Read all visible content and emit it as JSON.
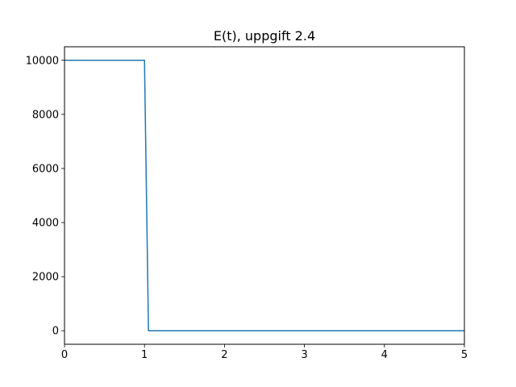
{
  "chart_data": {
    "type": "line",
    "title": "E(t), uppgift 2.4",
    "xlabel": "",
    "ylabel": "",
    "xlim": [
      0,
      5
    ],
    "ylim": [
      -500,
      10500
    ],
    "xticks": [
      0,
      1,
      2,
      3,
      4,
      5
    ],
    "yticks": [
      0,
      2000,
      4000,
      6000,
      8000,
      10000
    ],
    "grid": false,
    "series": [
      {
        "color": "#1f77b4",
        "x": [
          0,
          1.0,
          1.05,
          5
        ],
        "y": [
          10000,
          10000,
          0,
          0
        ]
      }
    ]
  }
}
